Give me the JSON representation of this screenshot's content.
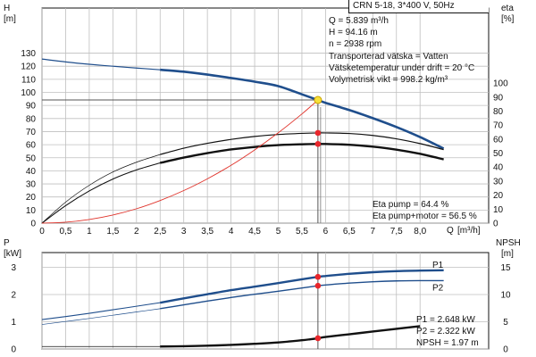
{
  "chart_data": [
    {
      "type": "line",
      "title": "CRN 5-18, 3*400 V, 50Hz",
      "ylabel_left": "H",
      "ylabel_left_unit": "[m]",
      "ylabel_right": "eta",
      "ylabel_right_unit": "[%]",
      "xlabel": "Q",
      "xlabel_unit": "[m³/h]",
      "xlim": [
        0,
        8.6
      ],
      "ylim_left": [
        0,
        130
      ],
      "ylim_right": [
        0,
        100
      ],
      "x_ticks": [
        "0",
        "0,5",
        "1",
        "1,5",
        "2",
        "2,5",
        "3",
        "3,5",
        "4",
        "4,5",
        "5",
        "5,5",
        "6",
        "6,5",
        "7",
        "7,5",
        "8,0"
      ],
      "y_ticks_left": [
        "0",
        "10",
        "20",
        "30",
        "40",
        "50",
        "60",
        "70",
        "80",
        "90",
        "100",
        "110",
        "120",
        "130"
      ],
      "y_ticks_right": [
        "0",
        "10",
        "20",
        "30",
        "40",
        "50",
        "60",
        "70",
        "80",
        "90",
        "100"
      ],
      "grid": true,
      "series": [
        {
          "role": "head",
          "color": "#1f4e8c",
          "y_axis": "left",
          "x": [
            0,
            0.5,
            1,
            1.5,
            2,
            2.5,
            3,
            3.5,
            4,
            4.5,
            5,
            5.5,
            5.839,
            6,
            6.5,
            7,
            7.5,
            8,
            8.5
          ],
          "values": [
            125.5,
            123.3,
            121.5,
            120.0,
            118.6,
            117.3,
            115.8,
            113.6,
            111.0,
            108.2,
            104.8,
            98.5,
            94.16,
            92.0,
            86.5,
            80.3,
            73.5,
            65.8,
            57.0
          ],
          "dashed_until": 2.5
        },
        {
          "role": "eta_pump",
          "color": "#111111",
          "y_axis": "right",
          "x": [
            0,
            0.5,
            1,
            1.5,
            2,
            2.5,
            3,
            3.5,
            4,
            4.5,
            5,
            5.5,
            5.839,
            6,
            6.5,
            7,
            7.5,
            8,
            8.5
          ],
          "values": [
            0,
            15,
            27,
            36.5,
            43.5,
            49,
            53.5,
            57,
            59.8,
            61.9,
            63.3,
            64.1,
            64.4,
            64.4,
            64.0,
            62.6,
            60.2,
            56.8,
            52.5
          ],
          "dashed_until": 2.5
        },
        {
          "role": "eta_pump_motor",
          "color": "#111111",
          "y_axis": "right",
          "x": [
            0,
            0.5,
            1,
            1.5,
            2,
            2.5,
            3,
            3.5,
            4,
            4.5,
            5,
            5.5,
            5.839,
            6,
            6.5,
            7,
            7.5,
            8,
            8.5
          ],
          "values": [
            0,
            12.5,
            23,
            31.5,
            38,
            43,
            46.8,
            50,
            52.6,
            54.4,
            55.7,
            56.3,
            56.5,
            56.5,
            56.0,
            54.6,
            52.5,
            49.5,
            45.5
          ],
          "dashed_until": 2.5
        },
        {
          "role": "system_curve",
          "color": "#e0332b",
          "y_axis": "left",
          "x": [
            0,
            0.5,
            1,
            1.5,
            2,
            2.5,
            3,
            3.5,
            4,
            4.5,
            5,
            5.5,
            5.839
          ],
          "values": [
            0,
            0.7,
            2.8,
            6.2,
            11.0,
            17.3,
            24.9,
            33.9,
            44.2,
            56.0,
            69.1,
            83.5,
            94.16
          ]
        }
      ],
      "duty_point": {
        "x": 5.839,
        "y": 94.16,
        "eta_pump": 64.4,
        "eta_pump_motor": 56.5
      },
      "annotations": {
        "info_lines": [
          "Q = 5.839 m³/h",
          "H = 94.16 m",
          "n = 2938 rpm",
          "Transporterad vätska = Vatten",
          "Vätsketemperatur under drift = 20 °C",
          "Volymetrisk vikt = 998.2 kg/m³"
        ],
        "eta_lines": [
          "Eta pump = 64.4 %",
          "Eta pump+motor = 56.5 %"
        ]
      }
    },
    {
      "type": "line",
      "ylabel_left": "P",
      "ylabel_left_unit": "[kW]",
      "ylabel_right": "NPSH",
      "ylabel_right_unit": "[m]",
      "xlim": [
        0,
        8.6
      ],
      "ylim_left": [
        0,
        3.4
      ],
      "ylim_right": [
        0,
        17
      ],
      "y_ticks_left": [
        "0",
        "1",
        "2",
        "3"
      ],
      "y_ticks_right": [
        "0",
        "5",
        "10",
        "15"
      ],
      "grid": true,
      "series": [
        {
          "name": "P1",
          "color": "#1f4e8c",
          "y_axis": "left",
          "x": [
            0,
            0.5,
            1,
            1.5,
            2,
            2.5,
            3,
            3.5,
            4,
            4.5,
            5,
            5.5,
            5.839,
            6,
            6.5,
            7,
            7.5,
            8,
            8.5
          ],
          "values": [
            1.08,
            1.19,
            1.31,
            1.44,
            1.57,
            1.7,
            1.86,
            2.01,
            2.16,
            2.29,
            2.42,
            2.56,
            2.648,
            2.68,
            2.76,
            2.82,
            2.86,
            2.88,
            2.89
          ],
          "dashed_until": 2.5
        },
        {
          "name": "P2",
          "color": "#1f4e8c",
          "y_axis": "left",
          "x": [
            0,
            0.5,
            1,
            1.5,
            2,
            2.5,
            3,
            3.5,
            4,
            4.5,
            5,
            5.5,
            5.839,
            6,
            6.5,
            7,
            7.5,
            8,
            8.5
          ],
          "values": [
            0.9,
            1.01,
            1.12,
            1.24,
            1.36,
            1.48,
            1.62,
            1.76,
            1.89,
            2.01,
            2.12,
            2.24,
            2.322,
            2.35,
            2.42,
            2.47,
            2.5,
            2.51,
            2.51
          ],
          "dashed_until": 2.5
        },
        {
          "name": "NPSH",
          "color": "#111111",
          "y_axis": "right",
          "x": [
            2.5,
            3,
            3.5,
            4,
            4.5,
            5,
            5.5,
            5.839,
            6,
            6.5,
            7,
            7.5,
            8
          ],
          "values": [
            0.45,
            0.5,
            0.6,
            0.75,
            0.95,
            1.2,
            1.6,
            1.97,
            2.2,
            2.7,
            3.2,
            3.7,
            4.2
          ]
        }
      ],
      "annotations": {
        "power_lines": [
          "P1 = 2.648 kW",
          "P2 = 2.322 kW",
          "NPSH = 1.97 m"
        ]
      }
    }
  ]
}
